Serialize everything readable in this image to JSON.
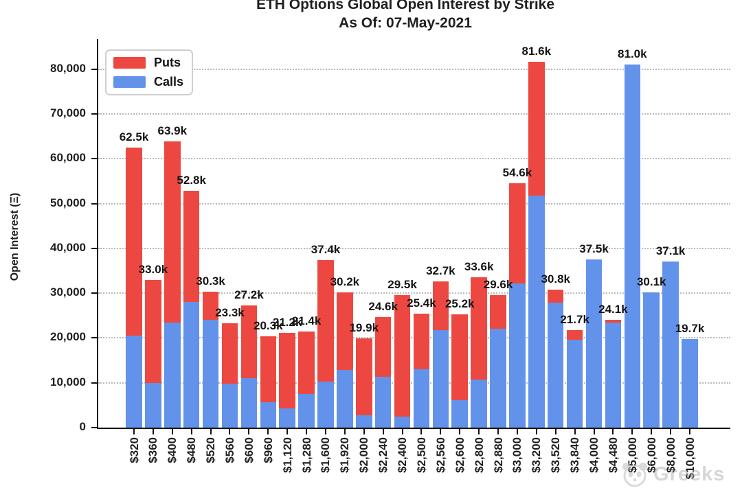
{
  "title": {
    "line1": "ETH Options Global Open Interest by Strike",
    "line2": "As Of: 07-May-2021"
  },
  "y_axis": {
    "label": "Open Interest (Ξ)",
    "ticks": [
      "0",
      "10,000",
      "20,000",
      "30,000",
      "40,000",
      "50,000",
      "60,000",
      "70,000",
      "80,000"
    ]
  },
  "legend": {
    "items": [
      {
        "label": "Puts",
        "color": "#ec4841"
      },
      {
        "label": "Calls",
        "color": "#6392ea"
      }
    ]
  },
  "watermark": {
    "icon": "panda-logo",
    "text": "Greeks"
  },
  "chart_data": {
    "type": "bar",
    "stacked": true,
    "title": "ETH Options Global Open Interest by Strike",
    "subtitle": "As Of: 07-May-2021",
    "xlabel": "Strike",
    "ylabel": "Open Interest (Ξ)",
    "ylim": [
      0,
      86000
    ],
    "ytick_step": 10000,
    "grid": "horizontal-dotted",
    "legend_position": "upper-left",
    "categories": [
      "$320",
      "$360",
      "$400",
      "$480",
      "$520",
      "$560",
      "$600",
      "$960",
      "$1,120",
      "$1,280",
      "$1,600",
      "$1,920",
      "$2,000",
      "$2,240",
      "$2,400",
      "$2,500",
      "$2,560",
      "$2,600",
      "$2,800",
      "$2,880",
      "$3,000",
      "$3,200",
      "$3,520",
      "$3,840",
      "$4,000",
      "$4,480",
      "$5,000",
      "$6,000",
      "$8,000",
      "$10,000"
    ],
    "series": [
      {
        "name": "Calls",
        "color": "#6392ea",
        "values_thousands": [
          20.5,
          10.0,
          23.5,
          28.0,
          24.0,
          9.8,
          11.0,
          5.7,
          4.3,
          7.5,
          10.2,
          12.8,
          2.7,
          11.3,
          2.5,
          13.0,
          21.7,
          6.2,
          10.7,
          22.0,
          32.1,
          51.8,
          27.9,
          19.6,
          37.5,
          23.4,
          81.0,
          30.1,
          37.1,
          19.7
        ]
      },
      {
        "name": "Puts",
        "color": "#ec4841",
        "values_thousands": [
          42.0,
          23.0,
          40.4,
          24.8,
          6.3,
          13.5,
          16.2,
          14.6,
          16.9,
          13.9,
          27.2,
          17.4,
          17.2,
          13.3,
          27.0,
          12.4,
          11.0,
          19.0,
          22.9,
          7.6,
          22.5,
          29.8,
          2.9,
          2.1,
          0.0,
          0.7,
          0.0,
          0.0,
          0.0,
          0.0
        ]
      }
    ],
    "total_labels": [
      "62.5k",
      "33.0k",
      "63.9k",
      "52.8k",
      "30.3k",
      "23.3k",
      "27.2k",
      "20.3k",
      "21.2k",
      "21.4k",
      "37.4k",
      "30.2k",
      "19.9k",
      "24.6k",
      "29.5k",
      "25.4k",
      "32.7k",
      "25.2k",
      "33.6k",
      "29.6k",
      "54.6k",
      "81.6k",
      "30.8k",
      "21.7k",
      "37.5k",
      "24.1k",
      "81.0k",
      "30.1k",
      "37.1k",
      "19.7k"
    ]
  }
}
